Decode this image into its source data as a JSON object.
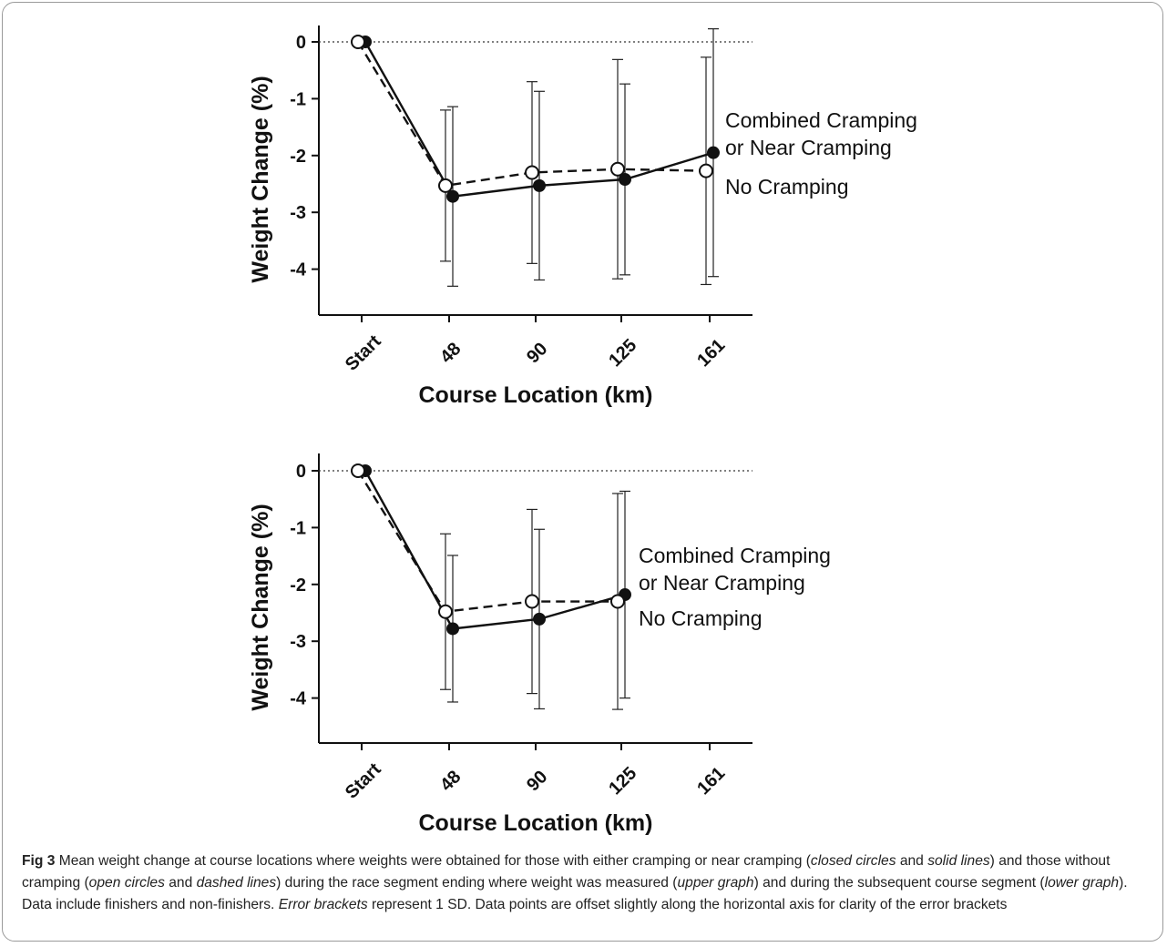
{
  "chart_data": [
    {
      "type": "line",
      "categories": [
        "Start",
        "48",
        "90",
        "125",
        "161"
      ],
      "xlabel": "Course Location (km)",
      "ylabel": "Weight Change (%)",
      "ylim": [
        -4.8,
        0.3
      ],
      "yticks": [
        "0",
        "-1",
        "-2",
        "-3",
        "-4"
      ],
      "series": [
        {
          "name": "Combined Cramping or Near Cramping",
          "marker": "closed",
          "line": "solid",
          "values": [
            0,
            -2.72,
            -2.53,
            -2.42,
            -1.95
          ],
          "sd": [
            0,
            1.58,
            1.66,
            1.68,
            2.18
          ]
        },
        {
          "name": "No Cramping",
          "marker": "open",
          "line": "dashed",
          "values": [
            0,
            -2.53,
            -2.3,
            -2.24,
            -2.27
          ],
          "sd": [
            0,
            1.33,
            1.6,
            1.93,
            2.0
          ]
        }
      ],
      "legend": {
        "line1": "Combined Cramping",
        "line2": "or Near Cramping",
        "line3": "No Cramping"
      }
    },
    {
      "type": "line",
      "categories": [
        "Start",
        "48",
        "90",
        "125",
        "161"
      ],
      "xlabel": "Course Location (km)",
      "ylabel": "Weight Change (%)",
      "ylim": [
        -4.8,
        0.3
      ],
      "yticks": [
        "0",
        "-1",
        "-2",
        "-3",
        "-4"
      ],
      "series": [
        {
          "name": "Combined Cramping or Near Cramping",
          "marker": "closed",
          "line": "solid",
          "values": [
            0,
            -2.78,
            -2.61,
            -2.18,
            null
          ],
          "sd": [
            0,
            1.29,
            1.58,
            1.82,
            null
          ]
        },
        {
          "name": "No Cramping",
          "marker": "open",
          "line": "dashed",
          "values": [
            0,
            -2.48,
            -2.3,
            -2.3,
            null
          ],
          "sd": [
            0,
            1.37,
            1.62,
            1.9,
            null
          ]
        }
      ],
      "legend": {
        "line1": "Combined Cramping",
        "line2": "or Near Cramping",
        "line3": "No Cramping"
      }
    }
  ],
  "caption": {
    "fig_label": "Fig 3",
    "seg1": " Mean weight change at course locations where weights were obtained for those with either cramping or near cramping (",
    "it1": "closed circles",
    "seg2": " and ",
    "it2": "solid lines",
    "seg3": ") and those without cramping (",
    "it3": "open circles",
    "seg4": " and ",
    "it4": "dashed lines",
    "seg5": ") during the race segment ending where weight was measured (",
    "it5": "upper graph",
    "seg6": ") and during the subsequent course segment (",
    "it6": "lower graph",
    "seg7": "). Data include finishers and non-finishers. ",
    "it7": "Error brackets",
    "seg8": " represent 1 SD. Data points are offset slightly along the horizontal axis for clarity of the error brackets"
  }
}
